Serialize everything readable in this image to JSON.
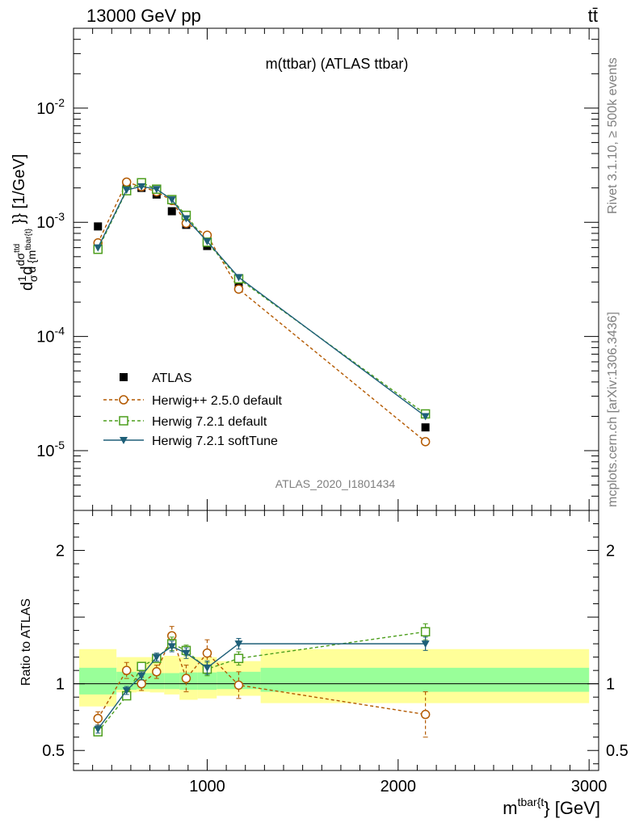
{
  "header": {
    "beam_label": "13000 GeV pp",
    "process_label": "tt̄"
  },
  "side_labels": {
    "rivet": "Rivet 3.1.10, ≥ 500k events",
    "mcplots": "mcplots.cern.ch [arXiv:1306.3436]"
  },
  "colors": {
    "data": "#000000",
    "herwigpp": "#b35900",
    "herwig721": "#4c9e1c",
    "softtune": "#1e5f78",
    "band_inner": "#99ff99",
    "band_outer": "#ffff99"
  },
  "chart_data": [
    {
      "type": "scatter",
      "title": "m(ttbar) (ATLAS ttbar)",
      "analysis_id": "ATLAS_2020_I1801434",
      "ylabel": "dσ̅¹ dσᵗᵗᵈ / d{mᵗᵇᵃʳ⁽ᵗ⁾} [1/GeV]",
      "ylabel_unit": "[1/GeV]",
      "yscale": "log",
      "ylim": [
        3e-06,
        0.05
      ],
      "xlim": [
        300,
        3050
      ],
      "ytick_labels": [
        "10^-5",
        "10^-4",
        "10^-3",
        "10^-2"
      ],
      "legend": [
        "ATLAS",
        "Herwig++ 2.5.0 default",
        "Herwig 7.2.1 default",
        "Herwig 7.2.1 softTune"
      ],
      "x": [
        428,
        578,
        656,
        735,
        815,
        890,
        1000,
        1165,
        2143
      ],
      "series": [
        {
          "name": "ATLAS",
          "marker": "square",
          "values": [
            0.00092,
            0.00206,
            0.002,
            0.00175,
            0.00125,
            0.00095,
            0.00062,
            0.00027,
            1.6e-05
          ]
        },
        {
          "name": "Herwig++ 2.5.0 default",
          "marker": "circle-open",
          "values": [
            0.00066,
            0.00225,
            0.00205,
            0.00185,
            0.00155,
            0.00098,
            0.00077,
            0.00026,
            1.2e-05
          ]
        },
        {
          "name": "Herwig 7.2.1 default",
          "marker": "square-open",
          "values": [
            0.00058,
            0.00189,
            0.00222,
            0.00195,
            0.00158,
            0.00115,
            0.00067,
            0.00032,
            2.1e-05
          ]
        },
        {
          "name": "Herwig 7.2.1 softTune",
          "marker": "triangle-down",
          "values": [
            0.0006,
            0.00192,
            0.00206,
            0.00195,
            0.00158,
            0.00108,
            0.00068,
            0.00033,
            2e-05
          ]
        }
      ]
    },
    {
      "type": "scatter",
      "ylabel": "Ratio to ATLAS",
      "xlabel": "mᵗᵇᵃʳ⁽ᵗ⁾} [GeV]",
      "xlabel_main": "m",
      "xlabel_sup": "tbar{t",
      "xlabel_rest": "} [GeV]",
      "ylim": [
        0.35,
        2.3
      ],
      "xlim": [
        300,
        3050
      ],
      "xticks": [
        1000,
        2000,
        3000
      ],
      "xtick_labels": [
        "1000",
        "2000",
        "3000"
      ],
      "yticks": [
        0.5,
        1,
        2
      ],
      "ytick_labels": [
        "0.5",
        "1",
        "2"
      ],
      "bands": {
        "edges": [
          330,
          525,
          630,
          700,
          775,
          855,
          950,
          1050,
          1280,
          3000
        ],
        "inner_lo": [
          0.92,
          0.955,
          0.96,
          0.96,
          0.96,
          0.955,
          0.955,
          0.96,
          0.94
        ],
        "inner_hi": [
          1.12,
          1.09,
          1.08,
          1.08,
          1.08,
          1.085,
          1.085,
          1.09,
          1.12
        ],
        "outer_lo": [
          0.83,
          0.935,
          0.94,
          0.935,
          0.92,
          0.88,
          0.89,
          0.91,
          0.855
        ],
        "outer_hi": [
          1.26,
          1.2,
          1.2,
          1.2,
          1.21,
          1.2,
          1.2,
          1.17,
          1.26
        ]
      },
      "x": [
        428,
        578,
        656,
        735,
        815,
        890,
        1000,
        1165,
        2143
      ],
      "series": [
        {
          "name": "Herwig++ 2.5.0 default",
          "values": [
            0.74,
            1.1,
            1.0,
            1.09,
            1.36,
            1.04,
            1.23,
            0.99,
            0.77
          ],
          "errors": [
            0.05,
            0.06,
            0.05,
            0.05,
            0.07,
            0.1,
            0.1,
            0.1,
            0.17
          ]
        },
        {
          "name": "Herwig 7.2.1 default",
          "values": [
            0.64,
            0.91,
            1.13,
            1.19,
            1.3,
            1.25,
            1.11,
            1.19,
            1.39
          ],
          "errors": [
            0.03,
            0.03,
            0.03,
            0.03,
            0.05,
            0.04,
            0.05,
            0.05,
            0.06
          ]
        },
        {
          "name": "Herwig 7.2.1 softTune",
          "values": [
            0.66,
            0.95,
            1.06,
            1.2,
            1.28,
            1.23,
            1.12,
            1.3,
            1.3
          ],
          "errors": [
            0.03,
            0.03,
            0.03,
            0.03,
            0.04,
            0.04,
            0.05,
            0.04,
            0.05
          ]
        }
      ]
    }
  ]
}
